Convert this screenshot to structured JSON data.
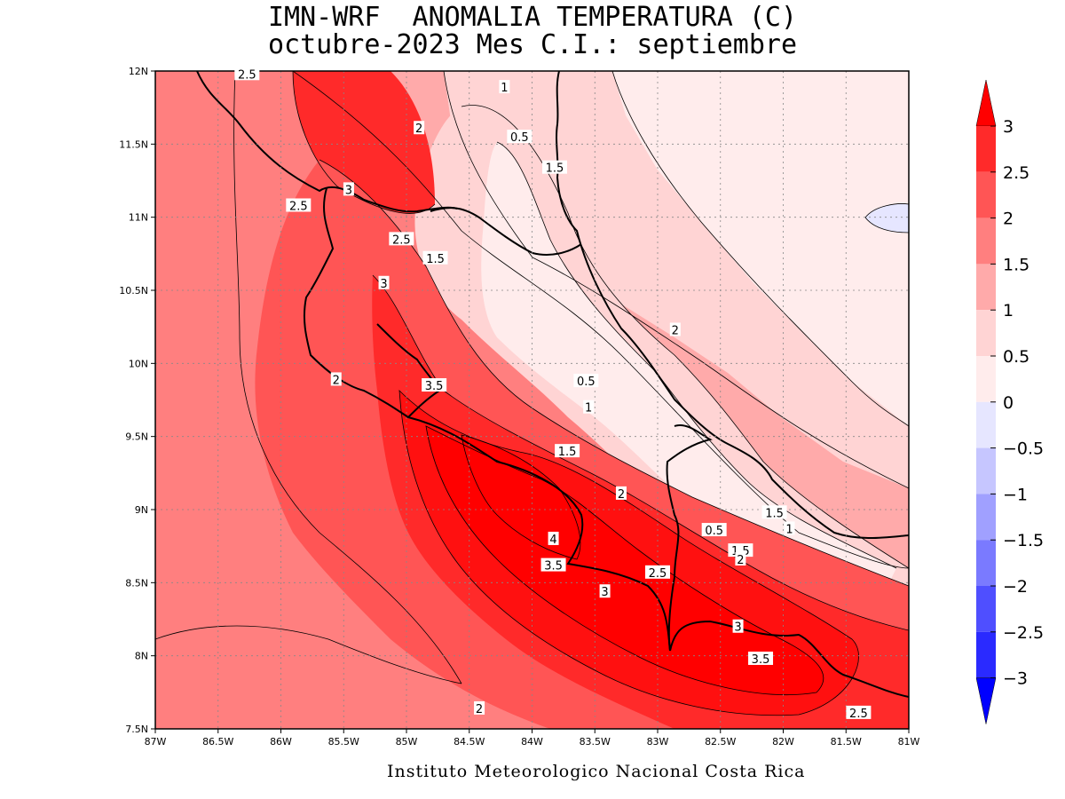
{
  "title": {
    "line1": "IMN-WRF  ANOMALIA TEMPERATURA (C)",
    "line2": "octubre-2023 Mes C.I.: septiembre"
  },
  "footer": "Instituto Meteorologico Nacional Costa Rica",
  "map": {
    "lon_range": [
      -87,
      -81
    ],
    "lat_range": [
      7.5,
      12
    ],
    "x_ticks": [
      "87W",
      "86.5W",
      "86W",
      "85.5W",
      "85W",
      "84.5W",
      "84W",
      "83.5W",
      "83W",
      "82.5W",
      "82W",
      "81.5W",
      "81W"
    ],
    "y_ticks": [
      "7.5N",
      "8N",
      "8.5N",
      "9N",
      "9.5N",
      "10N",
      "10.5N",
      "11N",
      "11.5N",
      "12N"
    ],
    "grid": "dotted"
  },
  "colorbar": {
    "labels": [
      "3",
      "2.5",
      "2",
      "1.5",
      "1",
      "0.5",
      "0",
      "−0.5",
      "−1",
      "−1.5",
      "−2",
      "−2.5",
      "−3"
    ],
    "colors_top_to_bottom": [
      "#ff0000",
      "#ff2a2a",
      "#ff5555",
      "#ff7f7f",
      "#ffaaaa",
      "#ffd4d4",
      "#ffecec",
      "#e6e6ff",
      "#c6c6ff",
      "#a0a0ff",
      "#7a7aff",
      "#4f4fff",
      "#2a2aff",
      "#0000ff"
    ]
  },
  "contour_labels": [
    {
      "text": "2.5",
      "lon": -86.27,
      "lat": 11.98
    },
    {
      "text": "1",
      "lon": -84.22,
      "lat": 11.89
    },
    {
      "text": "2",
      "lon": -84.9,
      "lat": 11.61
    },
    {
      "text": "0.5",
      "lon": -84.1,
      "lat": 11.55
    },
    {
      "text": "1.5",
      "lon": -83.82,
      "lat": 11.34
    },
    {
      "text": "3",
      "lon": -85.46,
      "lat": 11.19
    },
    {
      "text": "2.5",
      "lon": -85.86,
      "lat": 11.08
    },
    {
      "text": "2.5",
      "lon": -85.04,
      "lat": 10.85
    },
    {
      "text": "1.5",
      "lon": -84.77,
      "lat": 10.72
    },
    {
      "text": "3",
      "lon": -85.18,
      "lat": 10.55
    },
    {
      "text": "2",
      "lon": -82.86,
      "lat": 10.23
    },
    {
      "text": "2",
      "lon": -85.56,
      "lat": 9.89
    },
    {
      "text": "3.5",
      "lon": -84.78,
      "lat": 9.85
    },
    {
      "text": "0.5",
      "lon": -83.57,
      "lat": 9.88
    },
    {
      "text": "1",
      "lon": -83.55,
      "lat": 9.7
    },
    {
      "text": "1.5",
      "lon": -83.72,
      "lat": 9.4
    },
    {
      "text": "2",
      "lon": -83.29,
      "lat": 9.11
    },
    {
      "text": "1.5",
      "lon": -82.07,
      "lat": 8.98
    },
    {
      "text": "1",
      "lon": -81.95,
      "lat": 8.87
    },
    {
      "text": "0.5",
      "lon": -82.55,
      "lat": 8.86
    },
    {
      "text": "4",
      "lon": -83.83,
      "lat": 8.8
    },
    {
      "text": "1.5",
      "lon": -82.34,
      "lat": 8.72
    },
    {
      "text": "2",
      "lon": -82.34,
      "lat": 8.66
    },
    {
      "text": "3.5",
      "lon": -83.83,
      "lat": 8.62
    },
    {
      "text": "2.5",
      "lon": -83.0,
      "lat": 8.57
    },
    {
      "text": "3",
      "lon": -83.42,
      "lat": 8.44
    },
    {
      "text": "3",
      "lon": -82.36,
      "lat": 8.2
    },
    {
      "text": "3.5",
      "lon": -82.18,
      "lat": 7.98
    },
    {
      "text": "2",
      "lon": -84.42,
      "lat": 7.64
    },
    {
      "text": "2.5",
      "lon": -81.4,
      "lat": 7.61
    }
  ]
}
